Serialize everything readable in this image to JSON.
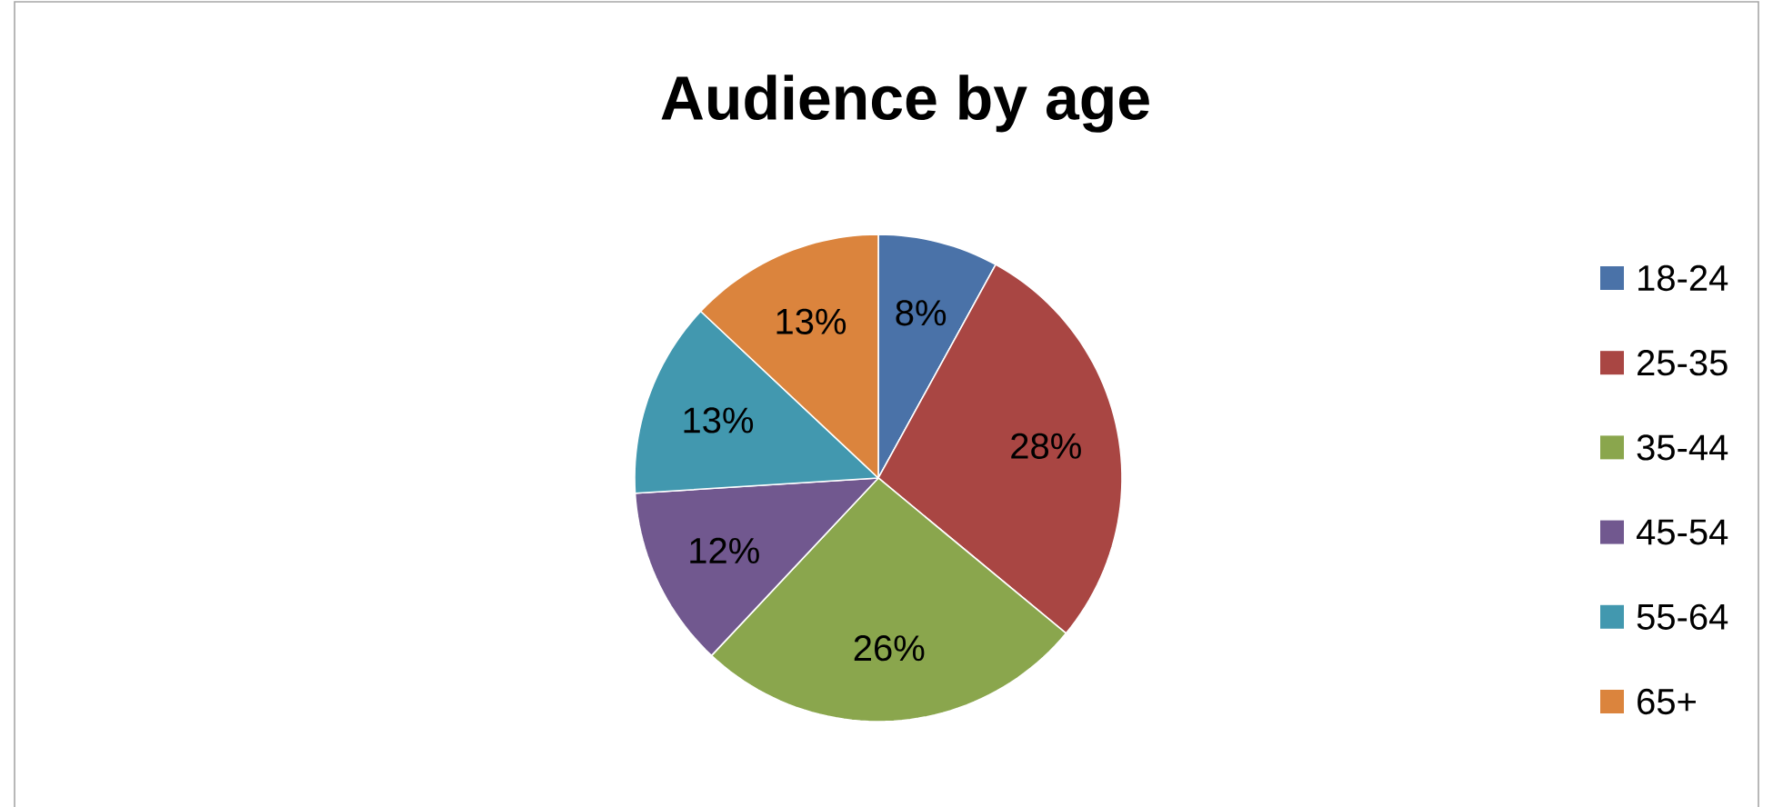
{
  "chart_data": {
    "type": "pie",
    "title": "Audience by age",
    "categories": [
      "18-24",
      "25-35",
      "35-44",
      "45-54",
      "55-64",
      "65+"
    ],
    "values": [
      8,
      28,
      26,
      12,
      13,
      13
    ],
    "value_labels": [
      "8%",
      "28%",
      "26%",
      "12%",
      "13%",
      "13%"
    ],
    "colors": [
      "#4a72a8",
      "#a94643",
      "#8aa64d",
      "#71588f",
      "#4298af",
      "#db843d"
    ],
    "legend": "right"
  }
}
